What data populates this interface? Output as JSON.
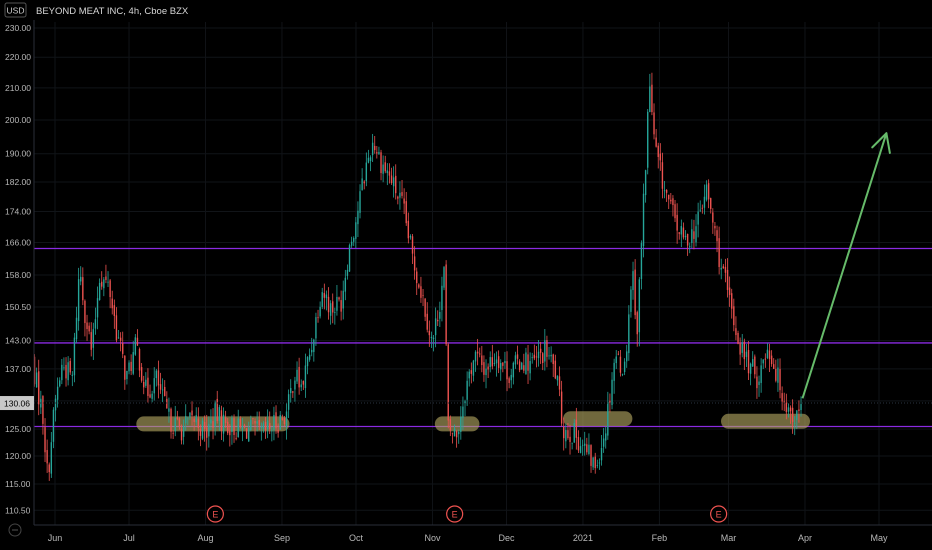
{
  "header": {
    "currency": "USD",
    "title": "BEYOND MEAT INC, 4h, Cboe BZX"
  },
  "chart_data": {
    "type": "candlestick",
    "title": "BEYOND MEAT INC, 4h, Cboe BZX",
    "ylabel": "USD",
    "y_ticks": [
      110.5,
      115.0,
      120.0,
      125.0,
      130.5,
      137.0,
      143.0,
      150.5,
      158.0,
      166.0,
      174.0,
      182.0,
      190.0,
      200.0,
      210.0,
      220.0,
      230.0
    ],
    "y_tick_labels": [
      "110.50",
      "115.00",
      "120.00",
      "125.00",
      "130.50",
      "137.00",
      "143.00",
      "150.50",
      "158.00",
      "166.00",
      "174.00",
      "182.00",
      "190.00",
      "200.00",
      "210.00",
      "220.00",
      "230.00"
    ],
    "x_ticks": [
      {
        "label": "Jun",
        "date": "2020-06-01"
      },
      {
        "label": "Jul",
        "date": "2020-07-01"
      },
      {
        "label": "Aug",
        "date": "2020-08-01"
      },
      {
        "label": "Sep",
        "date": "2020-09-01"
      },
      {
        "label": "Oct",
        "date": "2020-10-01"
      },
      {
        "label": "Nov",
        "date": "2020-11-01"
      },
      {
        "label": "Dec",
        "date": "2020-12-01"
      },
      {
        "label": "2021",
        "date": "2021-01-01"
      },
      {
        "label": "Feb",
        "date": "2021-02-01"
      },
      {
        "label": "Mar",
        "date": "2021-03-01"
      },
      {
        "label": "Apr",
        "date": "2021-04-01"
      },
      {
        "label": "May",
        "date": "2021-05-01"
      }
    ],
    "last_price": 130.06,
    "last_price_label": "130.06",
    "horizontal_lines": [
      164.5,
      142.5,
      125.5
    ],
    "earnings_markers": [
      {
        "label": "E",
        "date": "2020-08-05"
      },
      {
        "label": "E",
        "date": "2020-11-10"
      },
      {
        "label": "E",
        "date": "2021-02-25"
      }
    ],
    "support_zones": [
      {
        "from": "2020-07-07",
        "to": "2020-09-01",
        "price": 126.0
      },
      {
        "from": "2020-11-05",
        "to": "2020-11-17",
        "price": 126.0
      },
      {
        "from": "2020-12-27",
        "to": "2021-01-18",
        "price": 127.0
      },
      {
        "from": "2021-03-01",
        "to": "2021-03-31",
        "price": 126.5
      }
    ],
    "projection_arrow": {
      "from_date": "2021-03-31",
      "from_price": 131,
      "to_date": "2021-05-04",
      "to_price": 196
    },
    "candles_path": [
      [
        "2020-05-22",
        140
      ],
      [
        "2020-05-27",
        128
      ],
      [
        "2020-05-29",
        116
      ],
      [
        "2020-06-01",
        130
      ],
      [
        "2020-06-04",
        138
      ],
      [
        "2020-06-08",
        135
      ],
      [
        "2020-06-11",
        160
      ],
      [
        "2020-06-13",
        150
      ],
      [
        "2020-06-16",
        140
      ],
      [
        "2020-06-19",
        158
      ],
      [
        "2020-06-23",
        155
      ],
      [
        "2020-06-26",
        145
      ],
      [
        "2020-06-30",
        135
      ],
      [
        "2020-07-04",
        142
      ],
      [
        "2020-07-08",
        132
      ],
      [
        "2020-07-12",
        135
      ],
      [
        "2020-07-17",
        127
      ],
      [
        "2020-07-22",
        125
      ],
      [
        "2020-07-28",
        127
      ],
      [
        "2020-08-01",
        124
      ],
      [
        "2020-08-05",
        128
      ],
      [
        "2020-08-09",
        126
      ],
      [
        "2020-08-14",
        125
      ],
      [
        "2020-08-19",
        125
      ],
      [
        "2020-08-24",
        124
      ],
      [
        "2020-08-29",
        126
      ],
      [
        "2020-09-03",
        128
      ],
      [
        "2020-09-06",
        136
      ],
      [
        "2020-09-09",
        133
      ],
      [
        "2020-09-13",
        142
      ],
      [
        "2020-09-17",
        155
      ],
      [
        "2020-09-21",
        150
      ],
      [
        "2020-09-25",
        152
      ],
      [
        "2020-09-28",
        164
      ],
      [
        "2020-10-01",
        172
      ],
      [
        "2020-10-05",
        186
      ],
      [
        "2020-10-08",
        194
      ],
      [
        "2020-10-11",
        188
      ],
      [
        "2020-10-15",
        183
      ],
      [
        "2020-10-20",
        175
      ],
      [
        "2020-10-24",
        162
      ],
      [
        "2020-10-28",
        153
      ],
      [
        "2020-11-01",
        142
      ],
      [
        "2020-11-04",
        152
      ],
      [
        "2020-11-06",
        160
      ],
      [
        "2020-11-07",
        125
      ],
      [
        "2020-11-11",
        124
      ],
      [
        "2020-11-14",
        132
      ],
      [
        "2020-11-18",
        140
      ],
      [
        "2020-11-22",
        137
      ],
      [
        "2020-11-27",
        140
      ],
      [
        "2020-12-02",
        136
      ],
      [
        "2020-12-07",
        139
      ],
      [
        "2020-12-12",
        138
      ],
      [
        "2020-12-17",
        141
      ],
      [
        "2020-12-21",
        136
      ],
      [
        "2020-12-24",
        125
      ],
      [
        "2020-12-29",
        124
      ],
      [
        "2021-01-02",
        121
      ],
      [
        "2021-01-06",
        118
      ],
      [
        "2021-01-10",
        125
      ],
      [
        "2021-01-14",
        140
      ],
      [
        "2021-01-18",
        137
      ],
      [
        "2021-01-21",
        160
      ],
      [
        "2021-01-23",
        145
      ],
      [
        "2021-01-26",
        182
      ],
      [
        "2021-01-28",
        212
      ],
      [
        "2021-01-30",
        192
      ],
      [
        "2021-02-03",
        180
      ],
      [
        "2021-02-07",
        172
      ],
      [
        "2021-02-11",
        166
      ],
      [
        "2021-02-16",
        170
      ],
      [
        "2021-02-20",
        180
      ],
      [
        "2021-02-25",
        163
      ],
      [
        "2021-03-02",
        150
      ],
      [
        "2021-03-05",
        143
      ],
      [
        "2021-03-09",
        138
      ],
      [
        "2021-03-13",
        135
      ],
      [
        "2021-03-17",
        142
      ],
      [
        "2021-03-21",
        135
      ],
      [
        "2021-03-25",
        129
      ],
      [
        "2021-03-29",
        127
      ],
      [
        "2021-03-31",
        130
      ]
    ]
  }
}
